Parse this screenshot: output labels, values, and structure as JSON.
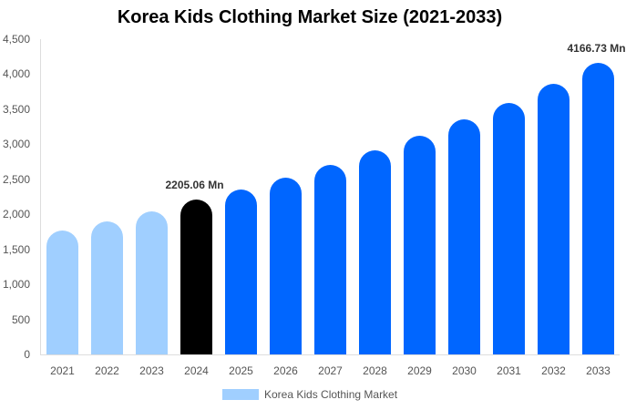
{
  "chart_data": {
    "type": "bar",
    "title": "Korea Kids Clothing Market Size (2021-2033)",
    "xlabel": "",
    "ylabel": "",
    "ylim": [
      0,
      4500
    ],
    "yticks": [
      0,
      500,
      1000,
      1500,
      2000,
      2500,
      3000,
      3500,
      4000,
      4500
    ],
    "ytick_labels": [
      "0",
      "500",
      "1,000",
      "1,500",
      "2,000",
      "2,500",
      "3,000",
      "3,500",
      "4,000",
      "4,500"
    ],
    "grid": false,
    "legend_position": "bottom",
    "categories": [
      "2021",
      "2022",
      "2023",
      "2024",
      "2025",
      "2026",
      "2027",
      "2028",
      "2029",
      "2030",
      "2031",
      "2032",
      "2033"
    ],
    "series": [
      {
        "name": "Korea Kids Clothing Market",
        "values": [
          1770,
          1900,
          2040,
          2205.06,
          2355,
          2520,
          2700,
          2910,
          3120,
          3355,
          3590,
          3860,
          4166.73
        ]
      }
    ],
    "bar_colors": [
      "#a0cfff",
      "#a0cfff",
      "#a0cfff",
      "#000000",
      "#0066ff",
      "#0066ff",
      "#0066ff",
      "#0066ff",
      "#0066ff",
      "#0066ff",
      "#0066ff",
      "#0066ff",
      "#0066ff"
    ],
    "annotations": [
      {
        "category": "2024",
        "text": "2205.06 Mn"
      },
      {
        "category": "2033",
        "text": "4166.73 Mn"
      }
    ]
  },
  "legend": {
    "label": "Korea Kids Clothing Market",
    "color": "#a0cfff"
  }
}
